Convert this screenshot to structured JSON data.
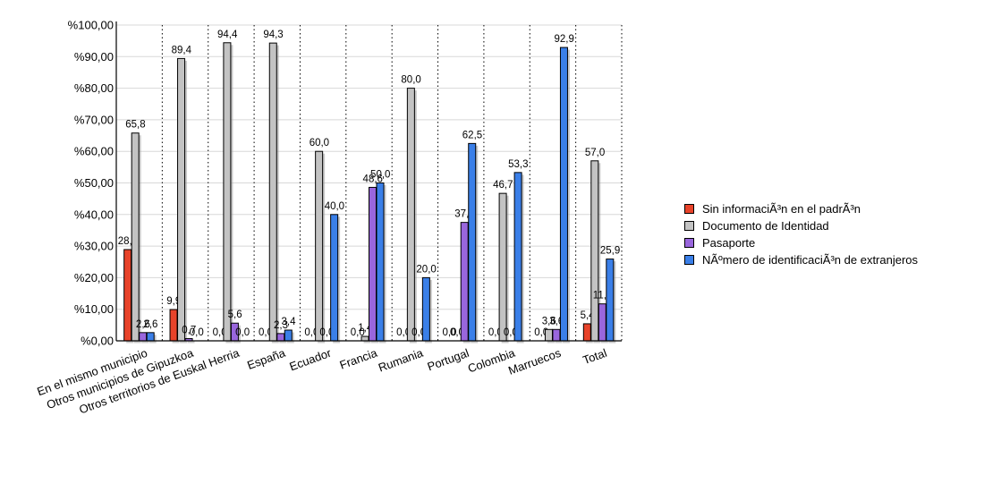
{
  "chart_data": {
    "type": "bar",
    "title": "",
    "xlabel": "",
    "ylabel": "",
    "ylim": [
      0,
      100
    ],
    "y_ticks": [
      "%0,00",
      "%10,00",
      "%20,00",
      "%30,00",
      "%40,00",
      "%50,00",
      "%60,00",
      "%70,00",
      "%80,00",
      "%90,00",
      "%100,00"
    ],
    "categories": [
      "En el mismo municipio",
      "Otros municipios de Gipuzkoa",
      "Otros territorios de Euskal Herria",
      "España",
      "Ecuador",
      "Francia",
      "Rumania",
      "Portugal",
      "Colombia",
      "Marruecos",
      "Total"
    ],
    "series": [
      {
        "name": "Sin informaciÃ³n en el padrÃ³n",
        "color": "#e8432a",
        "values": [
          28.9,
          9.9,
          0.0,
          0.0,
          0.0,
          0.0,
          0.0,
          0.0,
          0.0,
          0.0,
          5.4
        ],
        "labels": [
          "28,9",
          "9,9",
          "0,0",
          "0,0",
          "0,0",
          "0,0",
          "0,0",
          "0,0",
          "0,0",
          "0,0",
          "5,4"
        ]
      },
      {
        "name": "Documento de Identidad",
        "color": "#c3c3c3",
        "values": [
          65.8,
          89.4,
          94.4,
          94.3,
          60.0,
          1.4,
          80.0,
          0.0,
          46.7,
          3.6,
          57.0
        ],
        "labels": [
          "65,8",
          "89,4",
          "94,4",
          "94,3",
          "60,0",
          "1,4",
          "80,0",
          "0,0",
          "46,7",
          "3,6",
          "57,0"
        ]
      },
      {
        "name": "Pasaporte",
        "color": "#9966dd",
        "values": [
          2.6,
          0.7,
          5.6,
          2.3,
          0.0,
          48.6,
          0.0,
          37.5,
          0.0,
          3.6,
          11.7
        ],
        "labels": [
          "2,6",
          "0,7",
          "5,6",
          "2,3",
          "0,0",
          "48,6",
          "0,0",
          "37,5",
          "0,0",
          "3,6",
          "11,7"
        ]
      },
      {
        "name": "NÃºmero de identificaciÃ³n de extranjeros",
        "color": "#3a7fe8",
        "values": [
          2.6,
          0.0,
          0.0,
          3.4,
          40.0,
          50.0,
          20.0,
          62.5,
          53.3,
          92.9,
          25.9
        ],
        "labels": [
          "2,6",
          "0,0",
          "0,0",
          "3,4",
          "40,0",
          "50,0",
          "20,0",
          "62,5",
          "53,3",
          "92,9",
          "25,9"
        ]
      }
    ],
    "grid": true,
    "legend_position": "right"
  }
}
